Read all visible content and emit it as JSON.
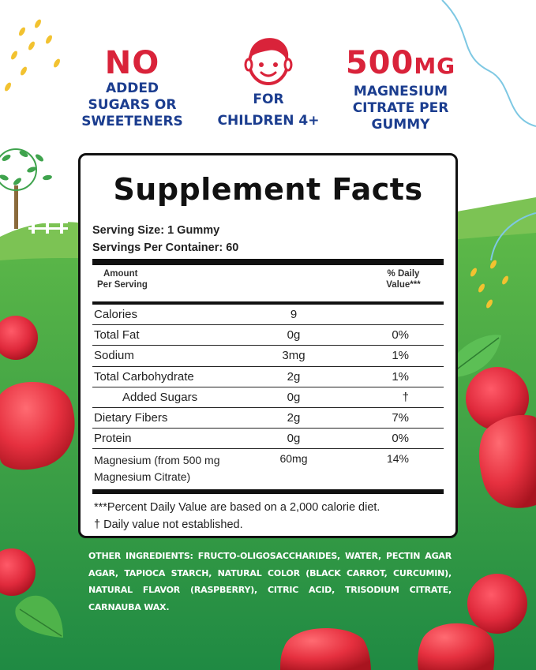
{
  "claims": [
    {
      "headline": "NO",
      "lines": [
        "ADDED",
        "SUGARS OR",
        "SWEETENERS"
      ],
      "icon": "none"
    },
    {
      "headline": "",
      "lines": [
        "FOR",
        "CHILDREN 4+"
      ],
      "icon": "child-face-icon"
    },
    {
      "headline": "500",
      "headline_unit": "MG",
      "lines": [
        "MAGNESIUM",
        "CITRATE PER",
        "GUMMY"
      ],
      "icon": "none"
    }
  ],
  "facts": {
    "title": "Supplement Facts",
    "serving_size": "Serving Size: 1 Gummy",
    "servings_per_container": "Servings Per Container: 60",
    "header_amount_line1": "Amount",
    "header_amount_line2": "Per Serving",
    "header_dv_line1": "% Daily",
    "header_dv_line2": "Value***",
    "rows": [
      {
        "name": "Calories",
        "amount": "9",
        "dv": ""
      },
      {
        "name": "Total Fat",
        "amount": "0g",
        "dv": "0%"
      },
      {
        "name": "Sodium",
        "amount": "3mg",
        "dv": "1%"
      },
      {
        "name": "Total Carbohydrate",
        "amount": "2g",
        "dv": "1%"
      },
      {
        "name": "Added Sugars",
        "amount": "0g",
        "dv": "†"
      },
      {
        "name": "Dietary Fibers",
        "amount": "2g",
        "dv": "7%"
      },
      {
        "name": "Protein",
        "amount": "0g",
        "dv": "0%"
      }
    ],
    "magnesium": {
      "name_line1": "Magnesium (from 500 mg",
      "name_line2": "Magnesium Citrate)",
      "amount": "60mg",
      "dv": "14%"
    },
    "footnote_1": "***Percent Daily Value  are based on a 2,000 calorie diet.",
    "footnote_2": "† Daily value not established."
  },
  "ingredients": {
    "lead": "OTHER INGREDIENTS:",
    "text": "FRUCTO-OLIGOSACCHARIDES, WATER, PECTIN AGAR AGAR, TAPIOCA STARCH, NATURAL COLOR (BLACK CARROT, CURCUMIN), NATURAL FLAVOR (RASPBERRY), CITRIC ACID, TRISODIUM CITRATE, CARNAUBA WAX."
  },
  "colors": {
    "claim_red": "#d9233a",
    "claim_blue": "#1b3d8f",
    "grass_green": "#2e9a48",
    "grass_light": "#7cc354",
    "berry_red": "#d42a3b"
  }
}
